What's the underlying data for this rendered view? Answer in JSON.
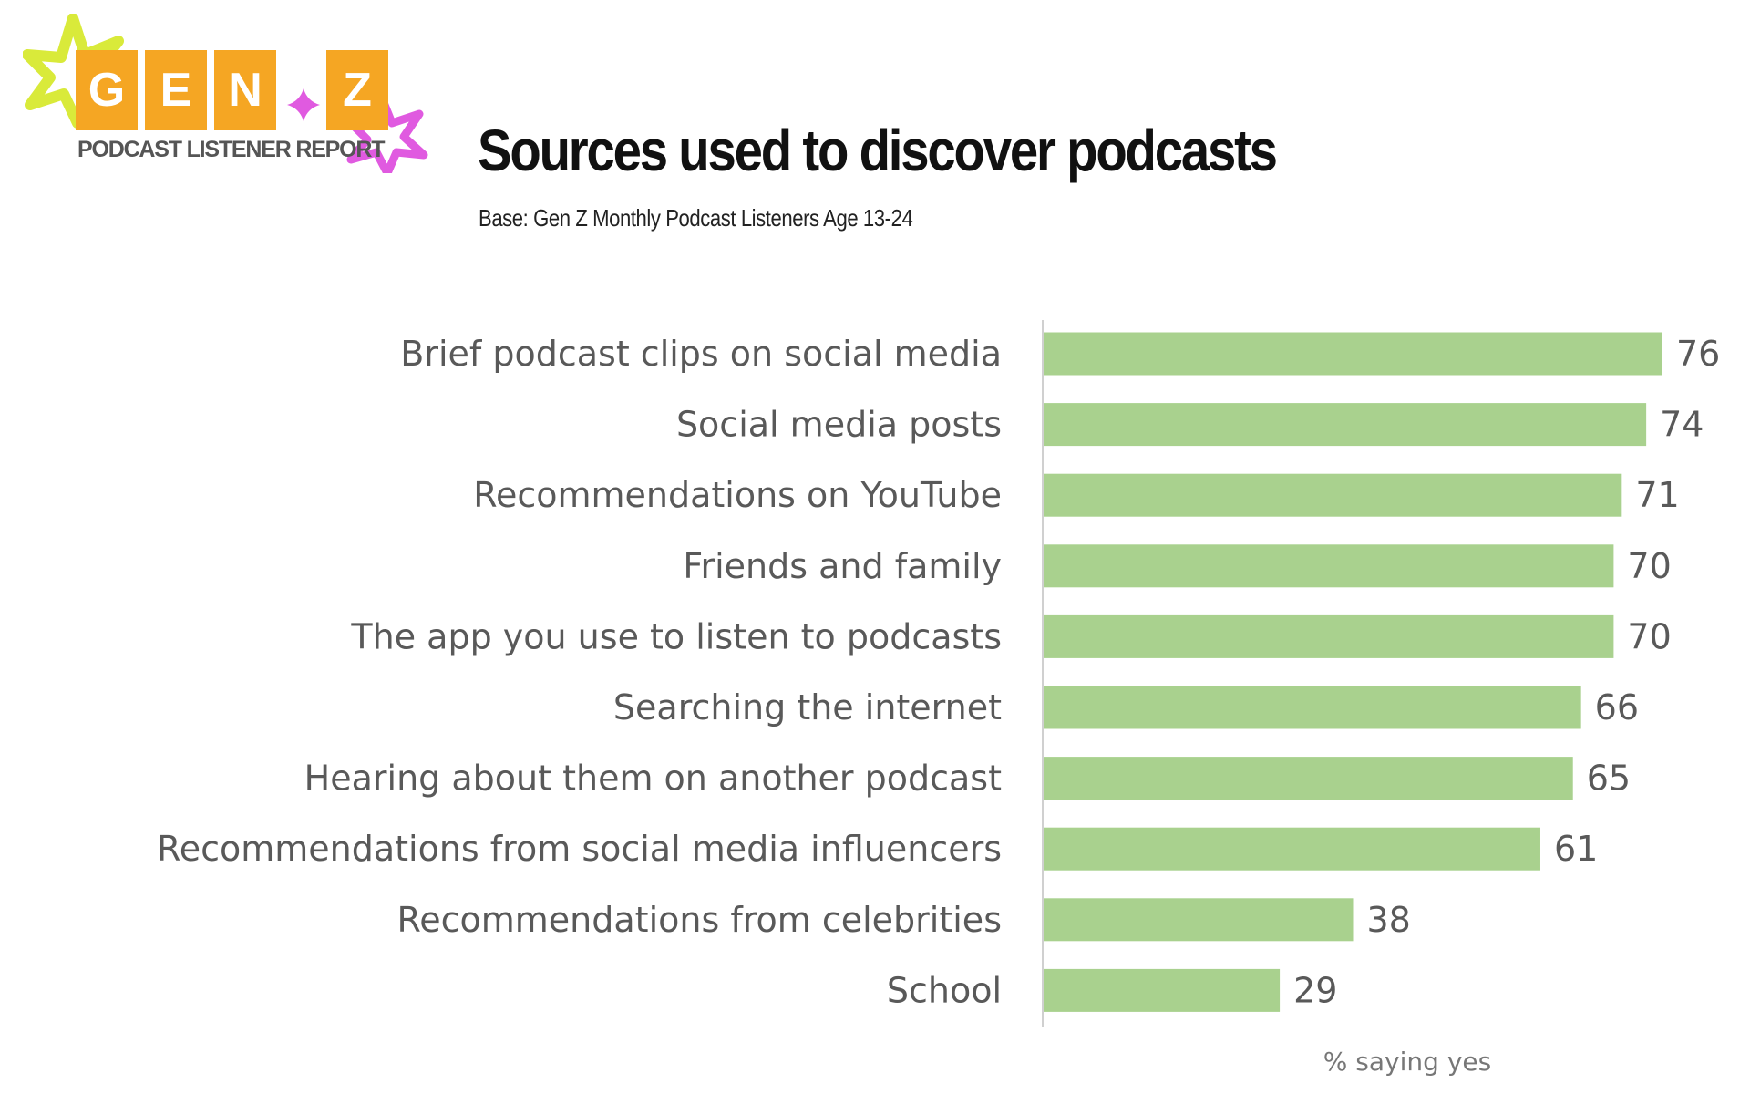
{
  "logo": {
    "letters": [
      "G",
      "E",
      "N",
      "Z"
    ],
    "subtitle": "PODCAST LISTENER REPORT",
    "colors": {
      "tile": "#f5a623",
      "flower_left": "#d9ea3a",
      "flower_right": "#e05ae0",
      "sparkle": "#e05ae0"
    }
  },
  "chart_data": {
    "type": "bar",
    "orientation": "horizontal",
    "title": "Sources used to discover podcasts",
    "subtitle": "Base: Gen Z Monthly Podcast Listeners Age 13-24",
    "categories": [
      "Brief podcast clips on social media",
      "Social media posts",
      "Recommendations on YouTube",
      "Friends and family",
      "The app you use to listen to podcasts",
      "Searching the internet",
      "Hearing about them on another podcast",
      "Recommendations from social media influencers",
      "Recommendations from celebrities",
      "School"
    ],
    "values": [
      76,
      74,
      71,
      70,
      70,
      66,
      65,
      61,
      38,
      29
    ],
    "xlabel": "% saying yes",
    "ylabel": "",
    "xlim": [
      0,
      76
    ],
    "grid": false,
    "data_labels": true,
    "bar_color": "#a9d18e"
  }
}
